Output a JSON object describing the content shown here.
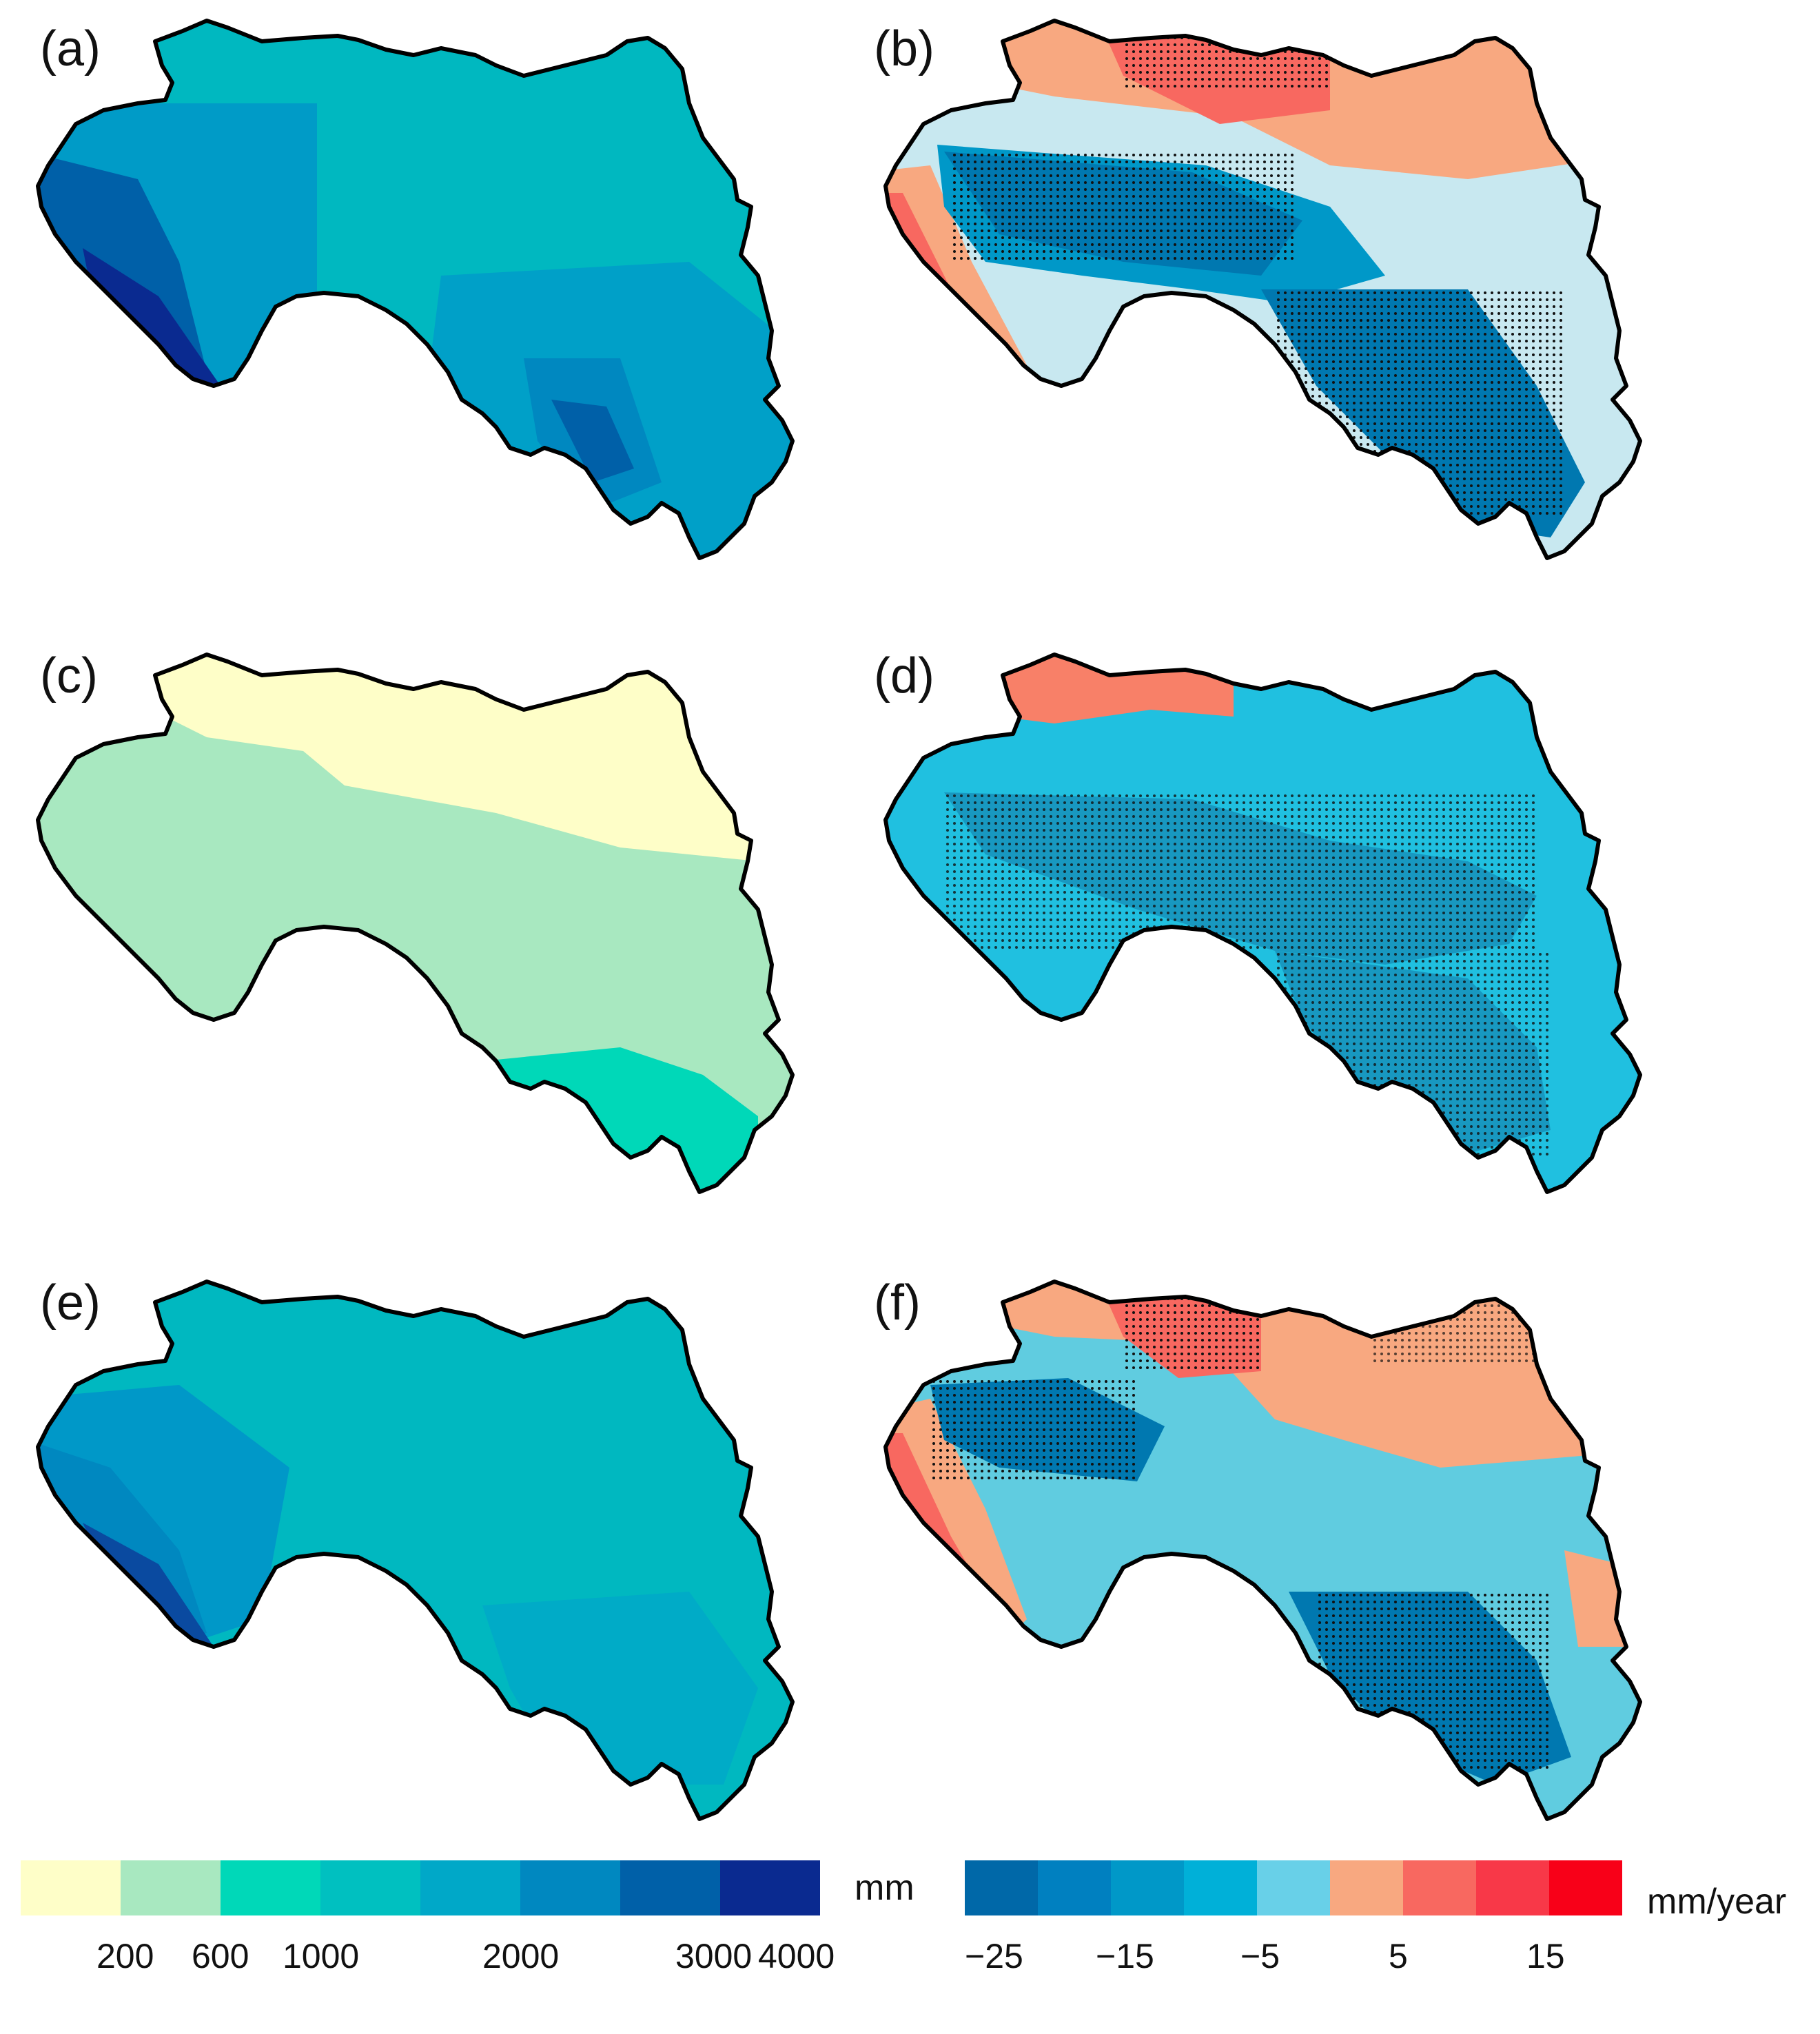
{
  "panels": [
    {
      "label": "(a)",
      "type": "precip"
    },
    {
      "label": "(b)",
      "type": "trend"
    },
    {
      "label": "(c)",
      "type": "precip"
    },
    {
      "label": "(d)",
      "type": "trend"
    },
    {
      "label": "(e)",
      "type": "precip"
    },
    {
      "label": "(f)",
      "type": "trend"
    }
  ],
  "legend_precip": {
    "unit": "mm",
    "colors": [
      "#fefec8",
      "#a8e8c0",
      "#00d8b8",
      "#00c0c0",
      "#00a8c8",
      "#0088c0",
      "#0060a8",
      "#0a2a90"
    ],
    "ticks": [
      "200",
      "600",
      "1000",
      "2000",
      "3000",
      "4000"
    ]
  },
  "legend_trend": {
    "unit": "mm/year",
    "colors": [
      "#0068a8",
      "#0080c0",
      "#0098c8",
      "#00b0d8",
      "#68d0e8",
      "#f8a880",
      "#f86860",
      "#f83848",
      "#f80018"
    ],
    "ticks": [
      "−25",
      "−15",
      "−5",
      "5",
      "15"
    ]
  },
  "map_colors": {
    "a": {
      "base": "#00b8c0",
      "west": "#0088c0",
      "coast": "#0a3a98",
      "south": "#00a0c8",
      "southcore": "#0070b8"
    },
    "b": {
      "base": "#c8e8f0",
      "north": "#f8a880",
      "northcore": "#f86860",
      "band": "#0078b0",
      "band2": "#00a8d0",
      "coast": "#f86860"
    },
    "c": {
      "base": "#a8e8c0",
      "north": "#fefec8",
      "south": "#00d8b8"
    },
    "d": {
      "base": "#20c0e0",
      "north": "#f88068",
      "band": "#1898c0"
    },
    "e": {
      "base": "#00b8c0",
      "west": "#0098c8",
      "coast": "#0a4aa0",
      "south": "#00a8c8"
    },
    "f": {
      "base": "#60cce0",
      "north": "#f8a880",
      "northcore": "#f86860",
      "band": "#0078b0",
      "coast": "#f86860"
    }
  }
}
